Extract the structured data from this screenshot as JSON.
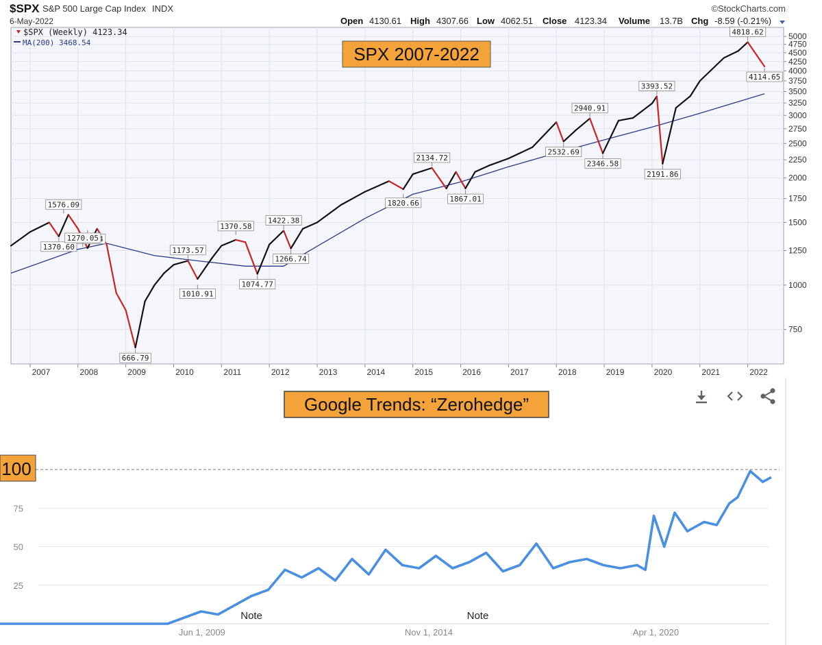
{
  "top": {
    "symbol": "$SPX",
    "name": "S&P 500 Large Cap Index",
    "exchange": "INDX",
    "date": "6-May-2022",
    "brand": "©StockCharts.com",
    "quote": {
      "open_label": "Open",
      "open": "4130.61",
      "high_label": "High",
      "high": "4307.66",
      "low_label": "Low",
      "low": "4062.51",
      "close_label": "Close",
      "close": "4123.34",
      "volume_label": "Volume",
      "volume": "13.7B",
      "chg_label": "Chg",
      "chg": "-8.59 (-0.21%)"
    },
    "legend": {
      "price": "$SPX (Weekly) 4123.34",
      "ma": "MA(200) 3468.54"
    },
    "overlay_title": "SPX 2007-2022"
  },
  "colors": {
    "price_up": "#111111",
    "price_down": "#cc2222",
    "ma": "#2b3a8a",
    "overlay_bg": "#f4a33a",
    "trend_line": "#4a90e2",
    "chart_bg": "#f4f6fb"
  },
  "chart_data": [
    {
      "type": "line",
      "title": "SPX 2007-2022",
      "scale": "log",
      "x_ticks": [
        "2007",
        "2008",
        "2009",
        "2010",
        "2011",
        "2012",
        "2013",
        "2014",
        "2015",
        "2016",
        "2017",
        "2018",
        "2019",
        "2020",
        "2021",
        "2022"
      ],
      "y_ticks": [
        "5000",
        "4750",
        "4500",
        "4250",
        "4000",
        "3750",
        "3500",
        "3250",
        "3000",
        "2750",
        "2500",
        "2250",
        "2000",
        "1750",
        "1500",
        "1250",
        "1000",
        "750"
      ],
      "ylim": [
        600,
        5300
      ],
      "series": [
        {
          "name": "$SPX (Weekly)",
          "x": [
            2006.6,
            2007.0,
            2007.4,
            2007.6,
            2007.8,
            2008.0,
            2008.2,
            2008.4,
            2008.6,
            2008.8,
            2009.0,
            2009.2,
            2009.4,
            2009.6,
            2009.8,
            2010.0,
            2010.3,
            2010.5,
            2010.8,
            2011.0,
            2011.3,
            2011.5,
            2011.75,
            2012.0,
            2012.3,
            2012.45,
            2012.7,
            2013.0,
            2013.5,
            2014.0,
            2014.5,
            2014.8,
            2015.0,
            2015.4,
            2015.7,
            2015.9,
            2016.1,
            2016.3,
            2016.6,
            2017.0,
            2017.5,
            2018.0,
            2018.15,
            2018.4,
            2018.7,
            2018.97,
            2019.3,
            2019.6,
            2020.0,
            2020.1,
            2020.22,
            2020.5,
            2020.8,
            2021.0,
            2021.5,
            2021.8,
            2022.0,
            2022.2,
            2022.35
          ],
          "values": [
            1290,
            1410,
            1500,
            1370,
            1576,
            1440,
            1270,
            1440,
            1300,
            950,
            850,
            667,
            900,
            1000,
            1080,
            1140,
            1170,
            1040,
            1190,
            1290,
            1340,
            1320,
            1075,
            1300,
            1422,
            1267,
            1440,
            1500,
            1680,
            1830,
            1960,
            1860,
            2050,
            2134,
            1868,
            2080,
            1870,
            2080,
            2170,
            2270,
            2440,
            2870,
            2533,
            2720,
            2940,
            2347,
            2900,
            2950,
            3240,
            3394,
            2192,
            3150,
            3400,
            3750,
            4350,
            4550,
            4818,
            4400,
            4115
          ]
        },
        {
          "name": "MA(200)",
          "x": [
            2006.6,
            2008.0,
            2008.6,
            2009.6,
            2010.5,
            2011.5,
            2012.3,
            2012.8,
            2014.0,
            2015.0,
            2016.0,
            2017.0,
            2018.0,
            2019.0,
            2020.0,
            2021.0,
            2022.35
          ],
          "values": [
            1080,
            1260,
            1310,
            1210,
            1170,
            1130,
            1130,
            1240,
            1540,
            1800,
            1950,
            2150,
            2350,
            2560,
            2780,
            3040,
            3450
          ]
        }
      ],
      "annotations": [
        {
          "x": 2007.7,
          "y": 1576.09,
          "label": "1576.09"
        },
        {
          "x": 2008.2,
          "y": 1440.24,
          "label": "1440.24"
        },
        {
          "x": 2007.6,
          "y": 1370.6,
          "label": "1370.60"
        },
        {
          "x": 2008.1,
          "y": 1270.05,
          "label": "1270.05"
        },
        {
          "x": 2009.2,
          "y": 666.79,
          "label": "666.79"
        },
        {
          "x": 2010.3,
          "y": 1173.57,
          "label": "1173.57"
        },
        {
          "x": 2010.5,
          "y": 1010.91,
          "label": "1010.91"
        },
        {
          "x": 2011.3,
          "y": 1370.58,
          "label": "1370.58"
        },
        {
          "x": 2011.75,
          "y": 1074.77,
          "label": "1074.77"
        },
        {
          "x": 2012.3,
          "y": 1422.38,
          "label": "1422.38"
        },
        {
          "x": 2012.45,
          "y": 1266.74,
          "label": "1266.74"
        },
        {
          "x": 2015.4,
          "y": 2134.72,
          "label": "2134.72"
        },
        {
          "x": 2014.8,
          "y": 1820.66,
          "label": "1820.66"
        },
        {
          "x": 2016.1,
          "y": 1867.01,
          "label": "1867.01"
        },
        {
          "x": 2018.7,
          "y": 2940.91,
          "label": "2940.91"
        },
        {
          "x": 2018.15,
          "y": 2532.69,
          "label": "2532.69"
        },
        {
          "x": 2018.97,
          "y": 2346.58,
          "label": "2346.58"
        },
        {
          "x": 2020.1,
          "y": 3393.52,
          "label": "3393.52"
        },
        {
          "x": 2020.22,
          "y": 2191.86,
          "label": "2191.86"
        },
        {
          "x": 2022.0,
          "y": 4818.62,
          "label": "4818.62"
        },
        {
          "x": 2022.35,
          "y": 4114.65,
          "label": "4114.65"
        }
      ]
    },
    {
      "type": "line",
      "title": "Google Trends: “Zerohedge”",
      "x_ticks": [
        "Jun 1, 2009",
        "Nov 1, 2014",
        "Apr 1, 2020"
      ],
      "y_ticks": [
        "100",
        "75",
        "50",
        "25"
      ],
      "ylim": [
        0,
        100
      ],
      "notes": [
        "Note",
        "Note"
      ],
      "series": [
        {
          "x": [
            2004.0,
            2008.6,
            2009.0,
            2009.4,
            2009.8,
            2010.2,
            2010.6,
            2011.0,
            2011.4,
            2011.8,
            2012.2,
            2012.6,
            2013.0,
            2013.4,
            2013.8,
            2014.2,
            2014.6,
            2015.0,
            2015.4,
            2015.8,
            2016.2,
            2016.6,
            2017.0,
            2017.4,
            2017.8,
            2018.2,
            2018.6,
            2019.0,
            2019.4,
            2019.8,
            2020.0,
            2020.2,
            2020.45,
            2020.7,
            2021.0,
            2021.4,
            2021.7,
            2022.0,
            2022.2,
            2022.5,
            2022.8,
            2023.0
          ],
          "values": [
            0,
            0,
            4,
            8,
            6,
            12,
            18,
            22,
            35,
            30,
            36,
            28,
            42,
            32,
            48,
            38,
            36,
            44,
            36,
            40,
            46,
            34,
            38,
            52,
            36,
            40,
            42,
            38,
            36,
            38,
            35,
            70,
            50,
            72,
            60,
            66,
            64,
            78,
            82,
            99,
            92,
            95
          ]
        }
      ]
    }
  ],
  "bottom": {
    "icons": [
      "download-icon",
      "embed-icon",
      "share-icon"
    ]
  }
}
